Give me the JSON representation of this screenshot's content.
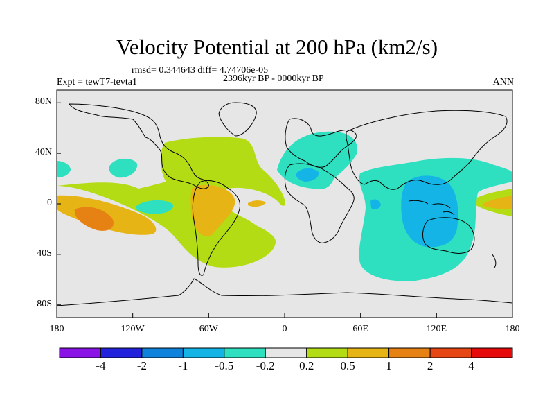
{
  "title": "Velocity Potential at 200 hPa (km2/s)",
  "stats": "rmsd= 0.344643 diff= 4.74706e-05",
  "period": "2396kyr BP - 0000kyr BP",
  "experiment": "Expt = tewT7-tevta1",
  "season": "ANN",
  "lon_labels": [
    "180",
    "120W",
    "60W",
    "0",
    "60E",
    "120E",
    "180"
  ],
  "lat_labels": [
    "80N",
    "40N",
    "0",
    "40S",
    "80S"
  ],
  "colorbar": {
    "labels": [
      "-4",
      "-2",
      "-1",
      "-0.5",
      "-0.2",
      "0.2",
      "0.5",
      "1",
      "2",
      "4"
    ],
    "colors": [
      "#8a14e6",
      "#2222dc",
      "#0f82dc",
      "#14b4e6",
      "#2ee0c0",
      "#e6e6e6",
      "#b4dc14",
      "#e6b414",
      "#e68214",
      "#e64614",
      "#e60a0a"
    ]
  },
  "palette": {
    "neutral": "#e6e6e6",
    "pos_0_2": "#b4dc14",
    "pos_0_5": "#e6b414",
    "pos_1": "#e68214",
    "neg_0_2": "#2ee0c0",
    "neg_0_5": "#14b4e6"
  }
}
